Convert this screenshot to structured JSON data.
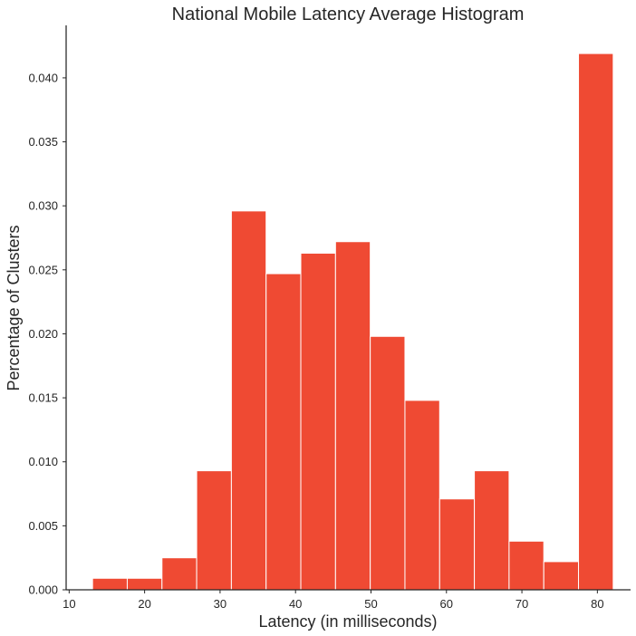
{
  "chart_data": {
    "type": "bar",
    "title": "National Mobile Latency Average Histogram",
    "xlabel": "Latency (in milliseconds)",
    "ylabel": "Percentage of Clusters",
    "xlim": [
      9.6,
      84.4
    ],
    "ylim": [
      0,
      0.0441
    ],
    "x_ticks": [
      10,
      20,
      30,
      40,
      50,
      60,
      70,
      80
    ],
    "x_tick_labels": [
      "10",
      "20",
      "30",
      "40",
      "50",
      "60",
      "70",
      "80"
    ],
    "y_ticks": [
      0,
      0.005,
      0.01,
      0.015,
      0.02,
      0.025,
      0.03,
      0.035,
      0.04
    ],
    "y_tick_labels": [
      "0.000",
      "0.005",
      "0.010",
      "0.015",
      "0.020",
      "0.025",
      "0.030",
      "0.035",
      "0.040"
    ],
    "bin_edges": [
      13.1,
      17.7,
      22.3,
      26.9,
      31.5,
      36.1,
      40.7,
      45.3,
      49.9,
      54.5,
      59.1,
      63.7,
      68.3,
      72.9,
      77.5,
      82.1
    ],
    "values": [
      0.0009,
      0.0009,
      0.0025,
      0.0093,
      0.0296,
      0.0247,
      0.0263,
      0.0272,
      0.0198,
      0.0148,
      0.0071,
      0.0093,
      0.0038,
      0.0022,
      0.0419
    ],
    "color": "#ef4a33",
    "grid": false
  }
}
